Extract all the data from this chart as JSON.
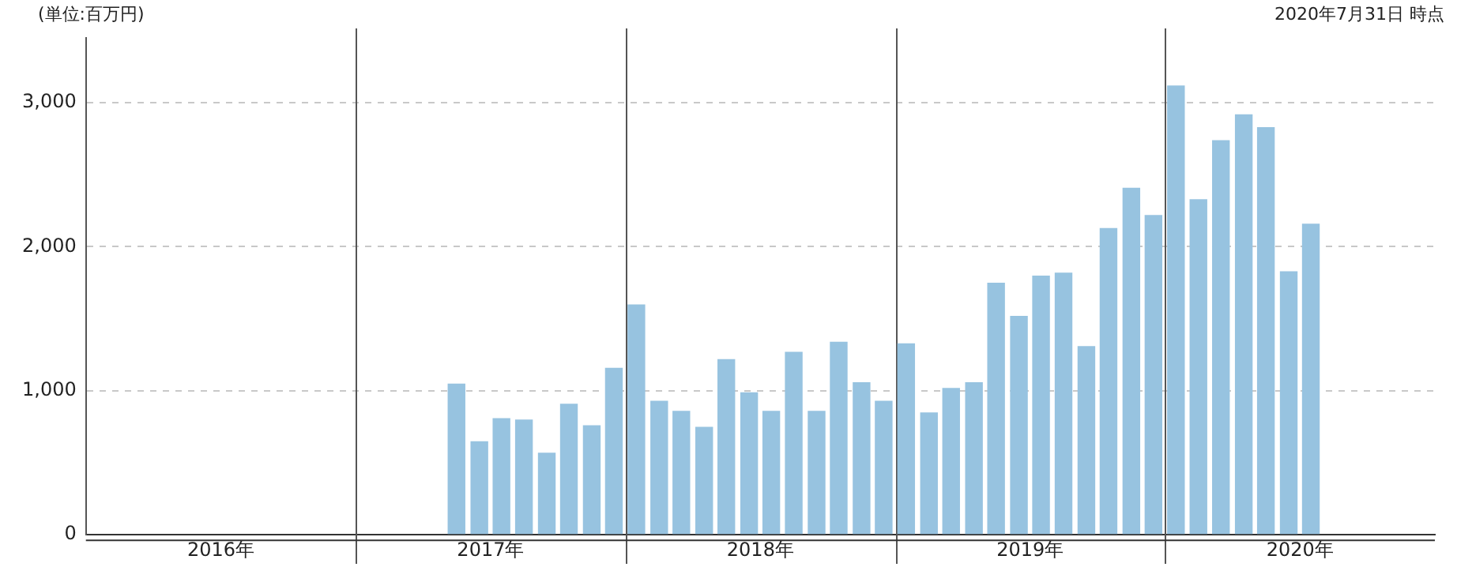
{
  "chart_data": {
    "type": "bar",
    "ylabel": "(単位:百万円)",
    "annotations": [
      "2020年7月31日 時点"
    ],
    "x": [
      "2017-05-16",
      "2017-06-16",
      "2017-07-16",
      "2017-08-16",
      "2017-09-16",
      "2017-10-16",
      "2017-11-16",
      "2017-12-16",
      "2018-01-16",
      "2018-02-15",
      "2018-03-16",
      "2018-04-16",
      "2018-05-16",
      "2018-06-16",
      "2018-07-16",
      "2018-08-16",
      "2018-09-16",
      "2018-10-16",
      "2018-11-16",
      "2018-12-16",
      "2019-01-16",
      "2019-02-15",
      "2019-03-16",
      "2019-04-16",
      "2019-05-16",
      "2019-06-16",
      "2019-07-16",
      "2019-08-16",
      "2019-09-16",
      "2019-10-16",
      "2019-11-16",
      "2019-12-16",
      "2020-01-16",
      "2020-02-15",
      "2020-03-16",
      "2020-04-16",
      "2020-05-16",
      "2020-06-16",
      "2020-07-16"
    ],
    "values": [
      1050,
      650,
      810,
      800,
      570,
      910,
      760,
      1160,
      1600,
      930,
      860,
      750,
      1220,
      990,
      860,
      1270,
      860,
      1340,
      1060,
      930,
      1330,
      850,
      1020,
      1060,
      1750,
      1520,
      1800,
      1820,
      1310,
      2130,
      2410,
      2220,
      3120,
      2330,
      2740,
      2920,
      2830,
      1830,
      2160
    ],
    "color": "#97c3e0",
    "xlim": [
      "2016-01",
      "2021-01"
    ],
    "xticks": [
      {
        "value": "2016-07",
        "label": "2016年"
      },
      {
        "value": "2017-07",
        "label": "2017年"
      },
      {
        "value": "2018-07",
        "label": "2018年"
      },
      {
        "value": "2019-07",
        "label": "2019年"
      },
      {
        "value": "2020-07",
        "label": "2020年"
      }
    ],
    "ylim": [
      0,
      3450
    ],
    "yticks": [
      {
        "value": 0,
        "label": "0"
      },
      {
        "value": 1000,
        "label": "1,000"
      },
      {
        "value": 2000,
        "label": "2,000"
      },
      {
        "value": 3000,
        "label": "3,000"
      }
    ],
    "ref_lines": [
      {
        "axis": "x",
        "value": "2017-01",
        "color": "#555555",
        "line_style": "solid"
      },
      {
        "axis": "x",
        "value": "2018-01",
        "color": "#555555",
        "line_style": "solid"
      },
      {
        "axis": "x",
        "value": "2019-01",
        "color": "#555555",
        "line_style": "solid"
      },
      {
        "axis": "x",
        "value": "2020-01",
        "color": "#555555",
        "line_style": "solid"
      }
    ],
    "grid": "y",
    "legend": false
  }
}
